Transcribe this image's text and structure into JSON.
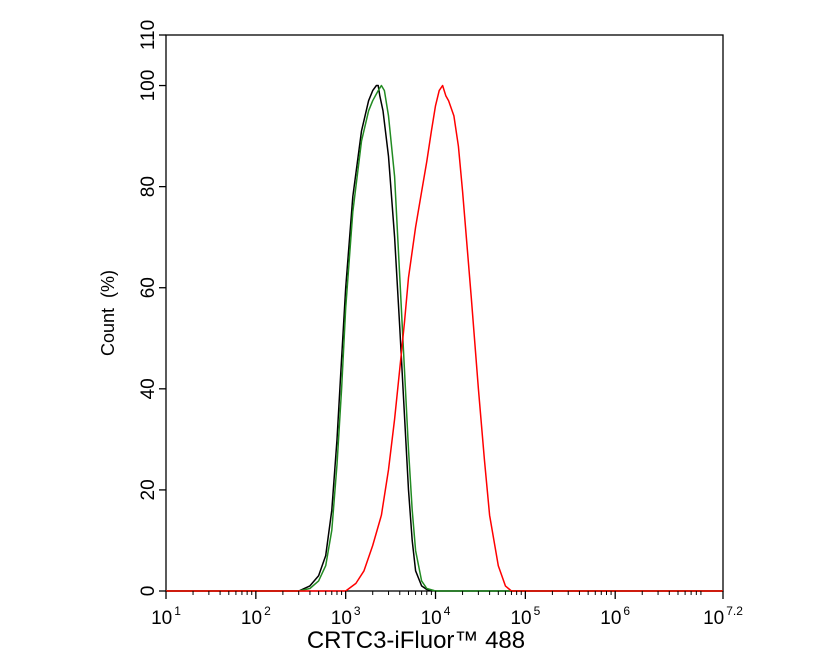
{
  "chart_data": {
    "type": "line",
    "title": "",
    "xlabel": "CRTC3-iFluor™ 488",
    "ylabel": "Count  (%)",
    "x_scale": "log10",
    "xlim": [
      10,
      15848931.92
    ],
    "ylim": [
      0,
      110
    ],
    "x_ticks": [
      {
        "base": "10",
        "exp": "1",
        "value": 10
      },
      {
        "base": "10",
        "exp": "2",
        "value": 100
      },
      {
        "base": "10",
        "exp": "3",
        "value": 1000
      },
      {
        "base": "10",
        "exp": "4",
        "value": 10000
      },
      {
        "base": "10",
        "exp": "5",
        "value": 100000
      },
      {
        "base": "10",
        "exp": "6",
        "value": 1000000
      },
      {
        "base": "10",
        "exp": "7.2",
        "value": 15848931.92
      }
    ],
    "y_ticks": [
      "0",
      "20",
      "40",
      "60",
      "80",
      "100",
      "110"
    ],
    "y_tick_values": [
      0,
      20,
      40,
      60,
      80,
      100,
      110
    ],
    "grid": false,
    "legend": "none",
    "series": [
      {
        "color": "#000000",
        "x": [
          300,
          400,
          500,
          600,
          700,
          800,
          900,
          1000,
          1200,
          1500,
          1800,
          2000,
          2200,
          2300,
          2400,
          2600,
          3000,
          3500,
          4000,
          4500,
          5000,
          5500,
          6000,
          7000,
          8000,
          10000
        ],
        "y": [
          0,
          1,
          3,
          7,
          16,
          30,
          46,
          60,
          78,
          91,
          97,
          99,
          100,
          100,
          98,
          95,
          86,
          70,
          52,
          35,
          20,
          10,
          4,
          1,
          0.3,
          0
        ]
      },
      {
        "color": "#228b22",
        "x": [
          300,
          400,
          500,
          600,
          700,
          800,
          900,
          1000,
          1200,
          1500,
          1800,
          2000,
          2300,
          2500,
          2700,
          3000,
          3500,
          4000,
          4500,
          5000,
          5500,
          6000,
          7000,
          8000,
          10000
        ],
        "y": [
          0,
          0.5,
          2,
          5,
          12,
          25,
          40,
          56,
          75,
          89,
          95,
          97,
          99,
          100,
          99,
          94,
          82,
          62,
          44,
          28,
          16,
          8,
          2,
          0.5,
          0
        ]
      },
      {
        "color": "#ff0000",
        "x": [
          1000,
          1300,
          1600,
          2000,
          2500,
          3000,
          3500,
          4000,
          4500,
          5000,
          6000,
          7000,
          8000,
          9000,
          10000,
          11000,
          12000,
          13000,
          14000,
          16000,
          18000,
          20000,
          25000,
          30000,
          35000,
          40000,
          50000,
          60000,
          70000
        ],
        "y": [
          0,
          1.5,
          4,
          9,
          15,
          24,
          34,
          44,
          53,
          62,
          72,
          79,
          85,
          91,
          96,
          99,
          100,
          98,
          97,
          94,
          88,
          79,
          58,
          40,
          26,
          15,
          5,
          1,
          0
        ]
      }
    ]
  }
}
